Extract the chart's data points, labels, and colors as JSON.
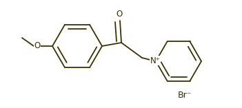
{
  "bg_color": "#ffffff",
  "line_color": "#3b3000",
  "br_text": "Br⁻",
  "n_plus_text": "N⁺",
  "o_text": "O",
  "o_methoxy_text": "O",
  "fig_width": 3.51,
  "fig_height": 1.57,
  "dpi": 100,
  "line_width": 1.3,
  "font_size": 8.5
}
